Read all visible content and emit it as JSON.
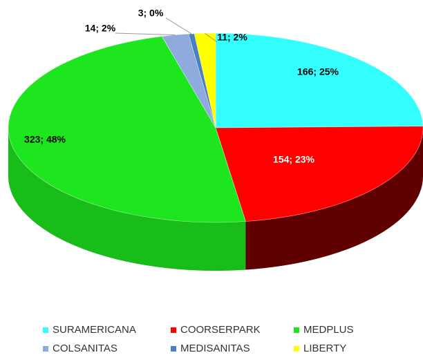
{
  "chart_data": {
    "type": "pie3d",
    "categories": [
      "SURAMERICANA",
      "COORSERPARK",
      "MEDPLUS",
      "COLSANITAS",
      "MEDISANITAS",
      "LIBERTY"
    ],
    "values": [
      166,
      154,
      323,
      14,
      3,
      11
    ],
    "value_labels": [
      "166; 25%",
      "154; 23%",
      "323; 48%",
      "14; 2%",
      "3; 0%",
      "11; 2%"
    ],
    "colors": [
      "#33ffff",
      "#ff0000",
      "#1ee61e",
      "#8faadc",
      "#4a7fc0",
      "#ffff00"
    ],
    "legend": "bottom"
  }
}
